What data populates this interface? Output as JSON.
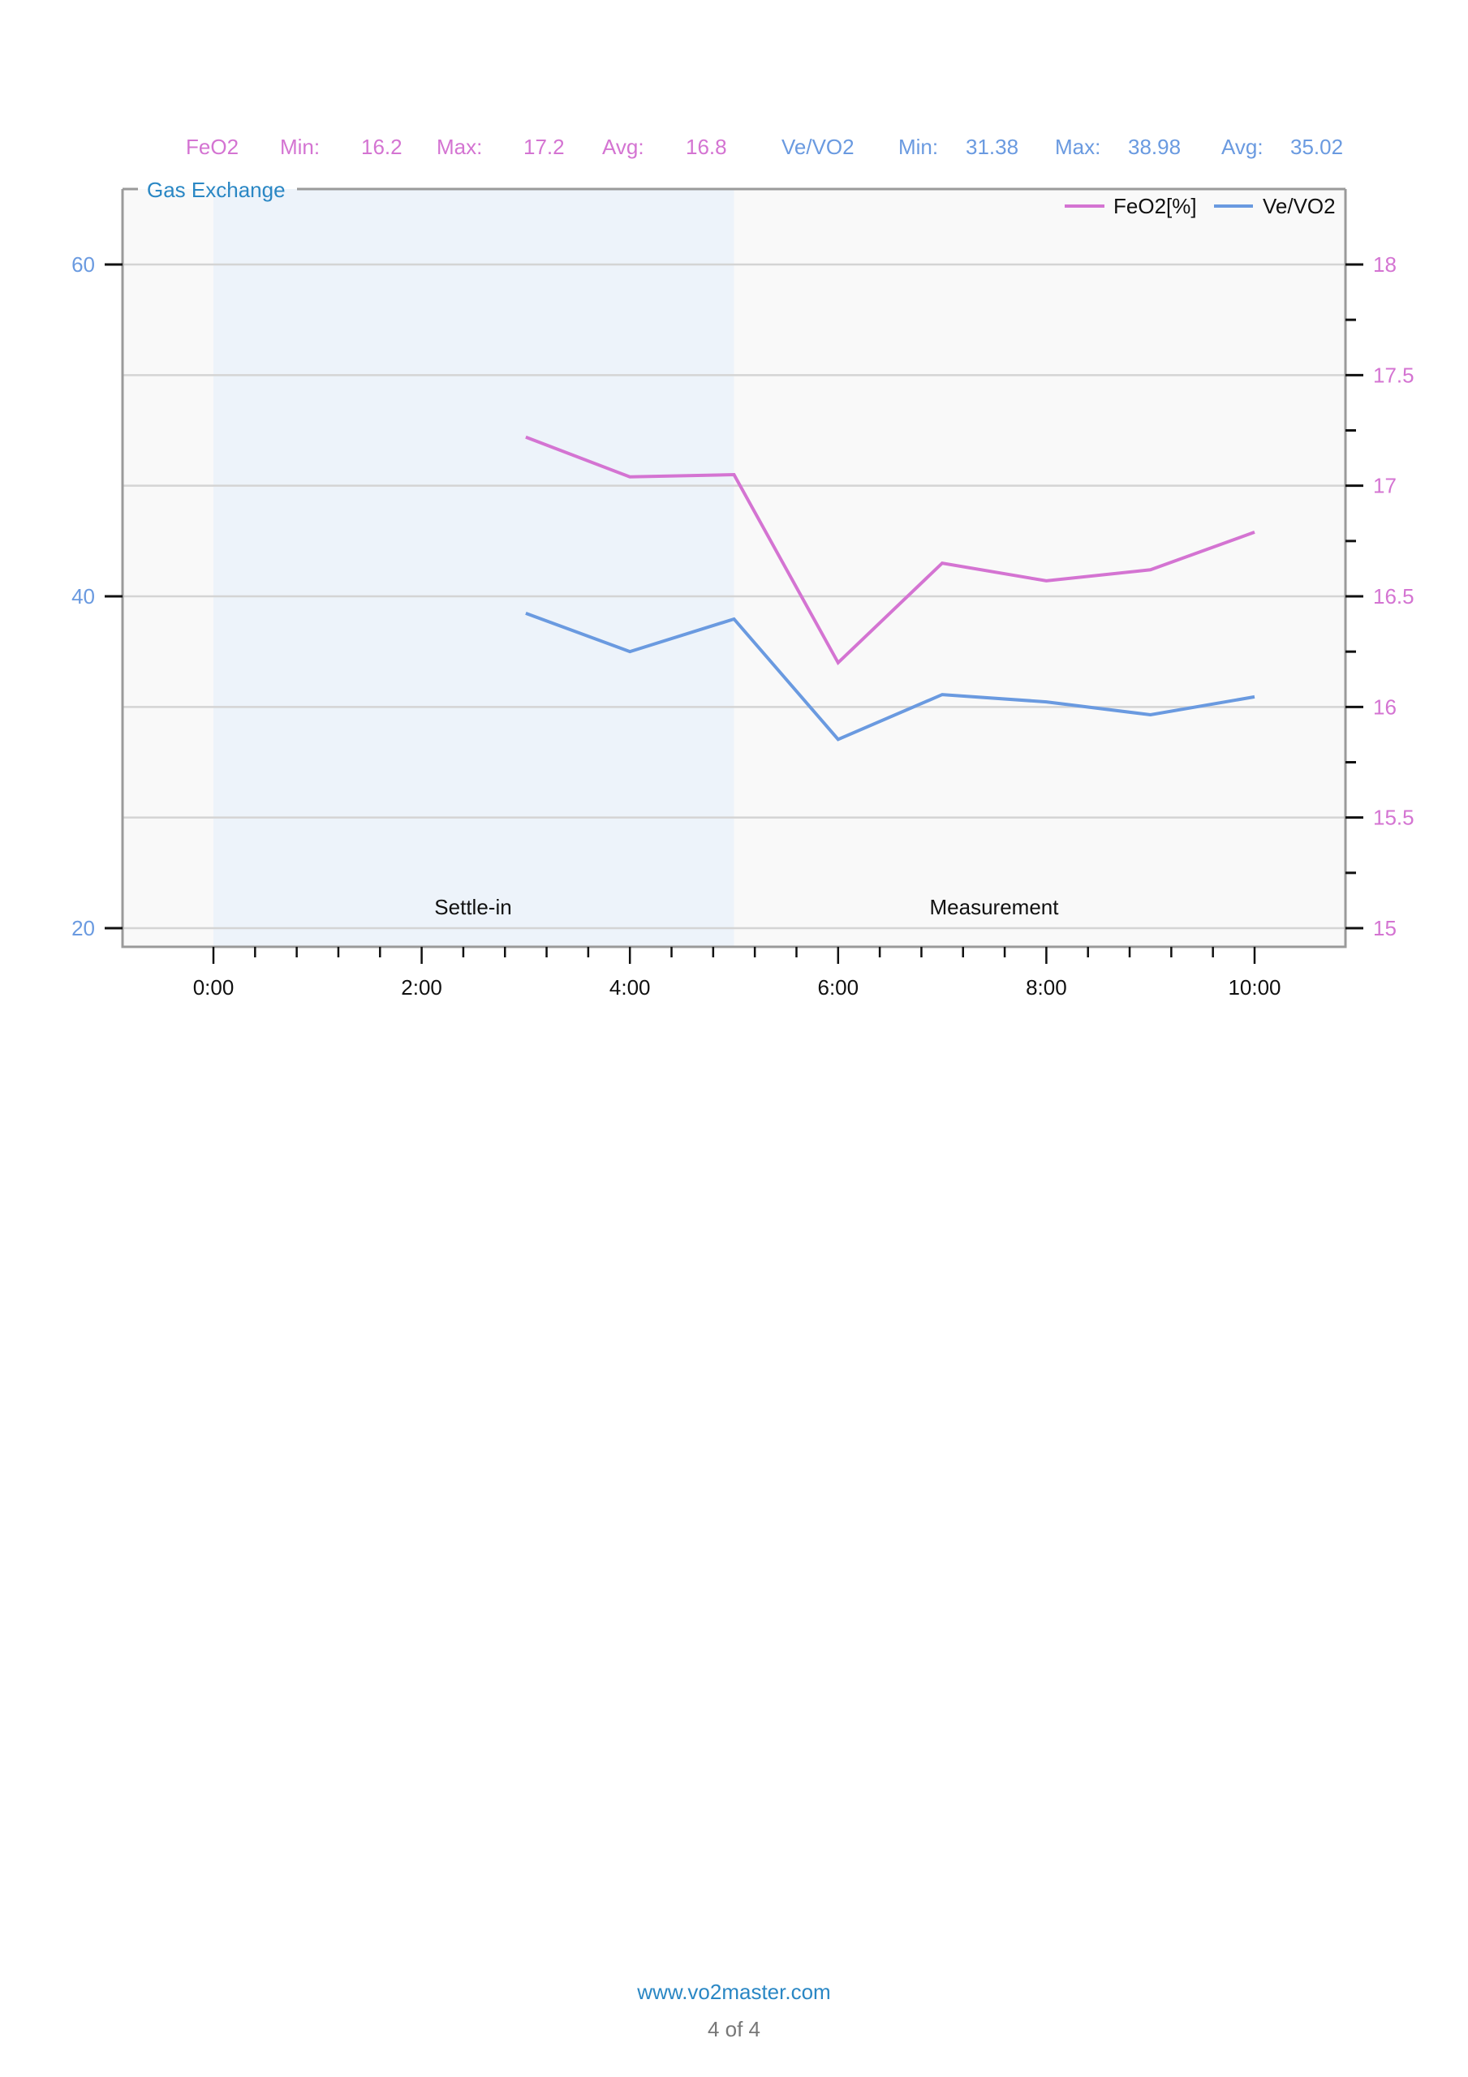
{
  "stats": {
    "feo2": {
      "name": "FeO2",
      "min_label": "Min:",
      "min": "16.2",
      "max_label": "Max:",
      "max": "17.2",
      "avg_label": "Avg:",
      "avg": "16.8"
    },
    "vevo2": {
      "name": "Ve/VO2",
      "min_label": "Min:",
      "min": "31.38",
      "max_label": "Max:",
      "max": "38.98",
      "avg_label": "Avg:",
      "avg": "35.02"
    }
  },
  "colors": {
    "feo2": "#d474d2",
    "vevo2": "#6a9ae0",
    "title": "#2a87c4",
    "settle_shade": "#edf3fa",
    "plot_bg": "#f9f9f9",
    "grid": "#d4d4d4",
    "frame": "#9a9a9a"
  },
  "footer": {
    "url": "www.vo2master.com",
    "page": "4 of 4"
  },
  "chart_data": {
    "type": "line",
    "title": "Gas Exchange",
    "x": [
      "3:00",
      "4:00",
      "5:00",
      "6:00",
      "7:00",
      "8:00",
      "9:00",
      "10:00"
    ],
    "x_minutes": [
      3,
      4,
      5,
      6,
      7,
      8,
      9,
      10
    ],
    "series": [
      {
        "name": "FeO2[%]",
        "axis": "right",
        "values": [
          17.22,
          17.04,
          17.05,
          16.2,
          16.65,
          16.57,
          16.62,
          16.79
        ]
      },
      {
        "name": "Ve/VO2",
        "axis": "left",
        "values": [
          38.98,
          36.67,
          38.63,
          31.38,
          34.08,
          33.64,
          32.86,
          33.94
        ]
      }
    ],
    "xlabel": "",
    "x_ticks": [
      "0:00",
      "2:00",
      "4:00",
      "6:00",
      "8:00",
      "10:00"
    ],
    "xlim_minutes": [
      -2.2,
      11.5
    ],
    "y_left": {
      "ticks": [
        "20",
        "40",
        "60"
      ],
      "ylim": [
        20,
        60
      ],
      "color": "#6a9ae0"
    },
    "y_right": {
      "ticks": [
        "15",
        "15.5",
        "16",
        "16.5",
        "17",
        "17.5",
        "18"
      ],
      "ylim": [
        15,
        18
      ],
      "color": "#d474d2"
    },
    "grid": true,
    "legend_position": "top-right",
    "legend": [
      "FeO2[%]",
      "Ve/VO2"
    ],
    "phases": [
      {
        "label": "Settle-in",
        "start_min": 0,
        "end_min": 5,
        "shaded": true
      },
      {
        "label": "Measurement",
        "start_min": 5,
        "end_min": 11.5,
        "shaded": false
      }
    ]
  }
}
